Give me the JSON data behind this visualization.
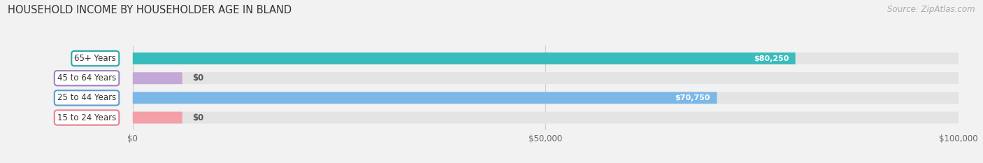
{
  "title": "HOUSEHOLD INCOME BY HOUSEHOLDER AGE IN BLAND",
  "source": "Source: ZipAtlas.com",
  "categories": [
    "15 to 24 Years",
    "25 to 44 Years",
    "45 to 64 Years",
    "65+ Years"
  ],
  "values": [
    0,
    70750,
    0,
    80250
  ],
  "bar_colors": [
    "#f4a0a8",
    "#7bb8e8",
    "#c4a8d8",
    "#38bcbc"
  ],
  "label_colors": [
    "#e88090",
    "#5a9ad0",
    "#a080c0",
    "#28a8a8"
  ],
  "value_labels": [
    "$0",
    "$70,750",
    "$0",
    "$80,250"
  ],
  "xlim": [
    0,
    100000
  ],
  "xticks": [
    0,
    50000,
    100000
  ],
  "xtick_labels": [
    "$0",
    "$50,000",
    "$100,000"
  ],
  "bg_color": "#f2f2f2",
  "bar_bg_color": "#e4e4e4",
  "title_fontsize": 10.5,
  "source_fontsize": 8.5
}
